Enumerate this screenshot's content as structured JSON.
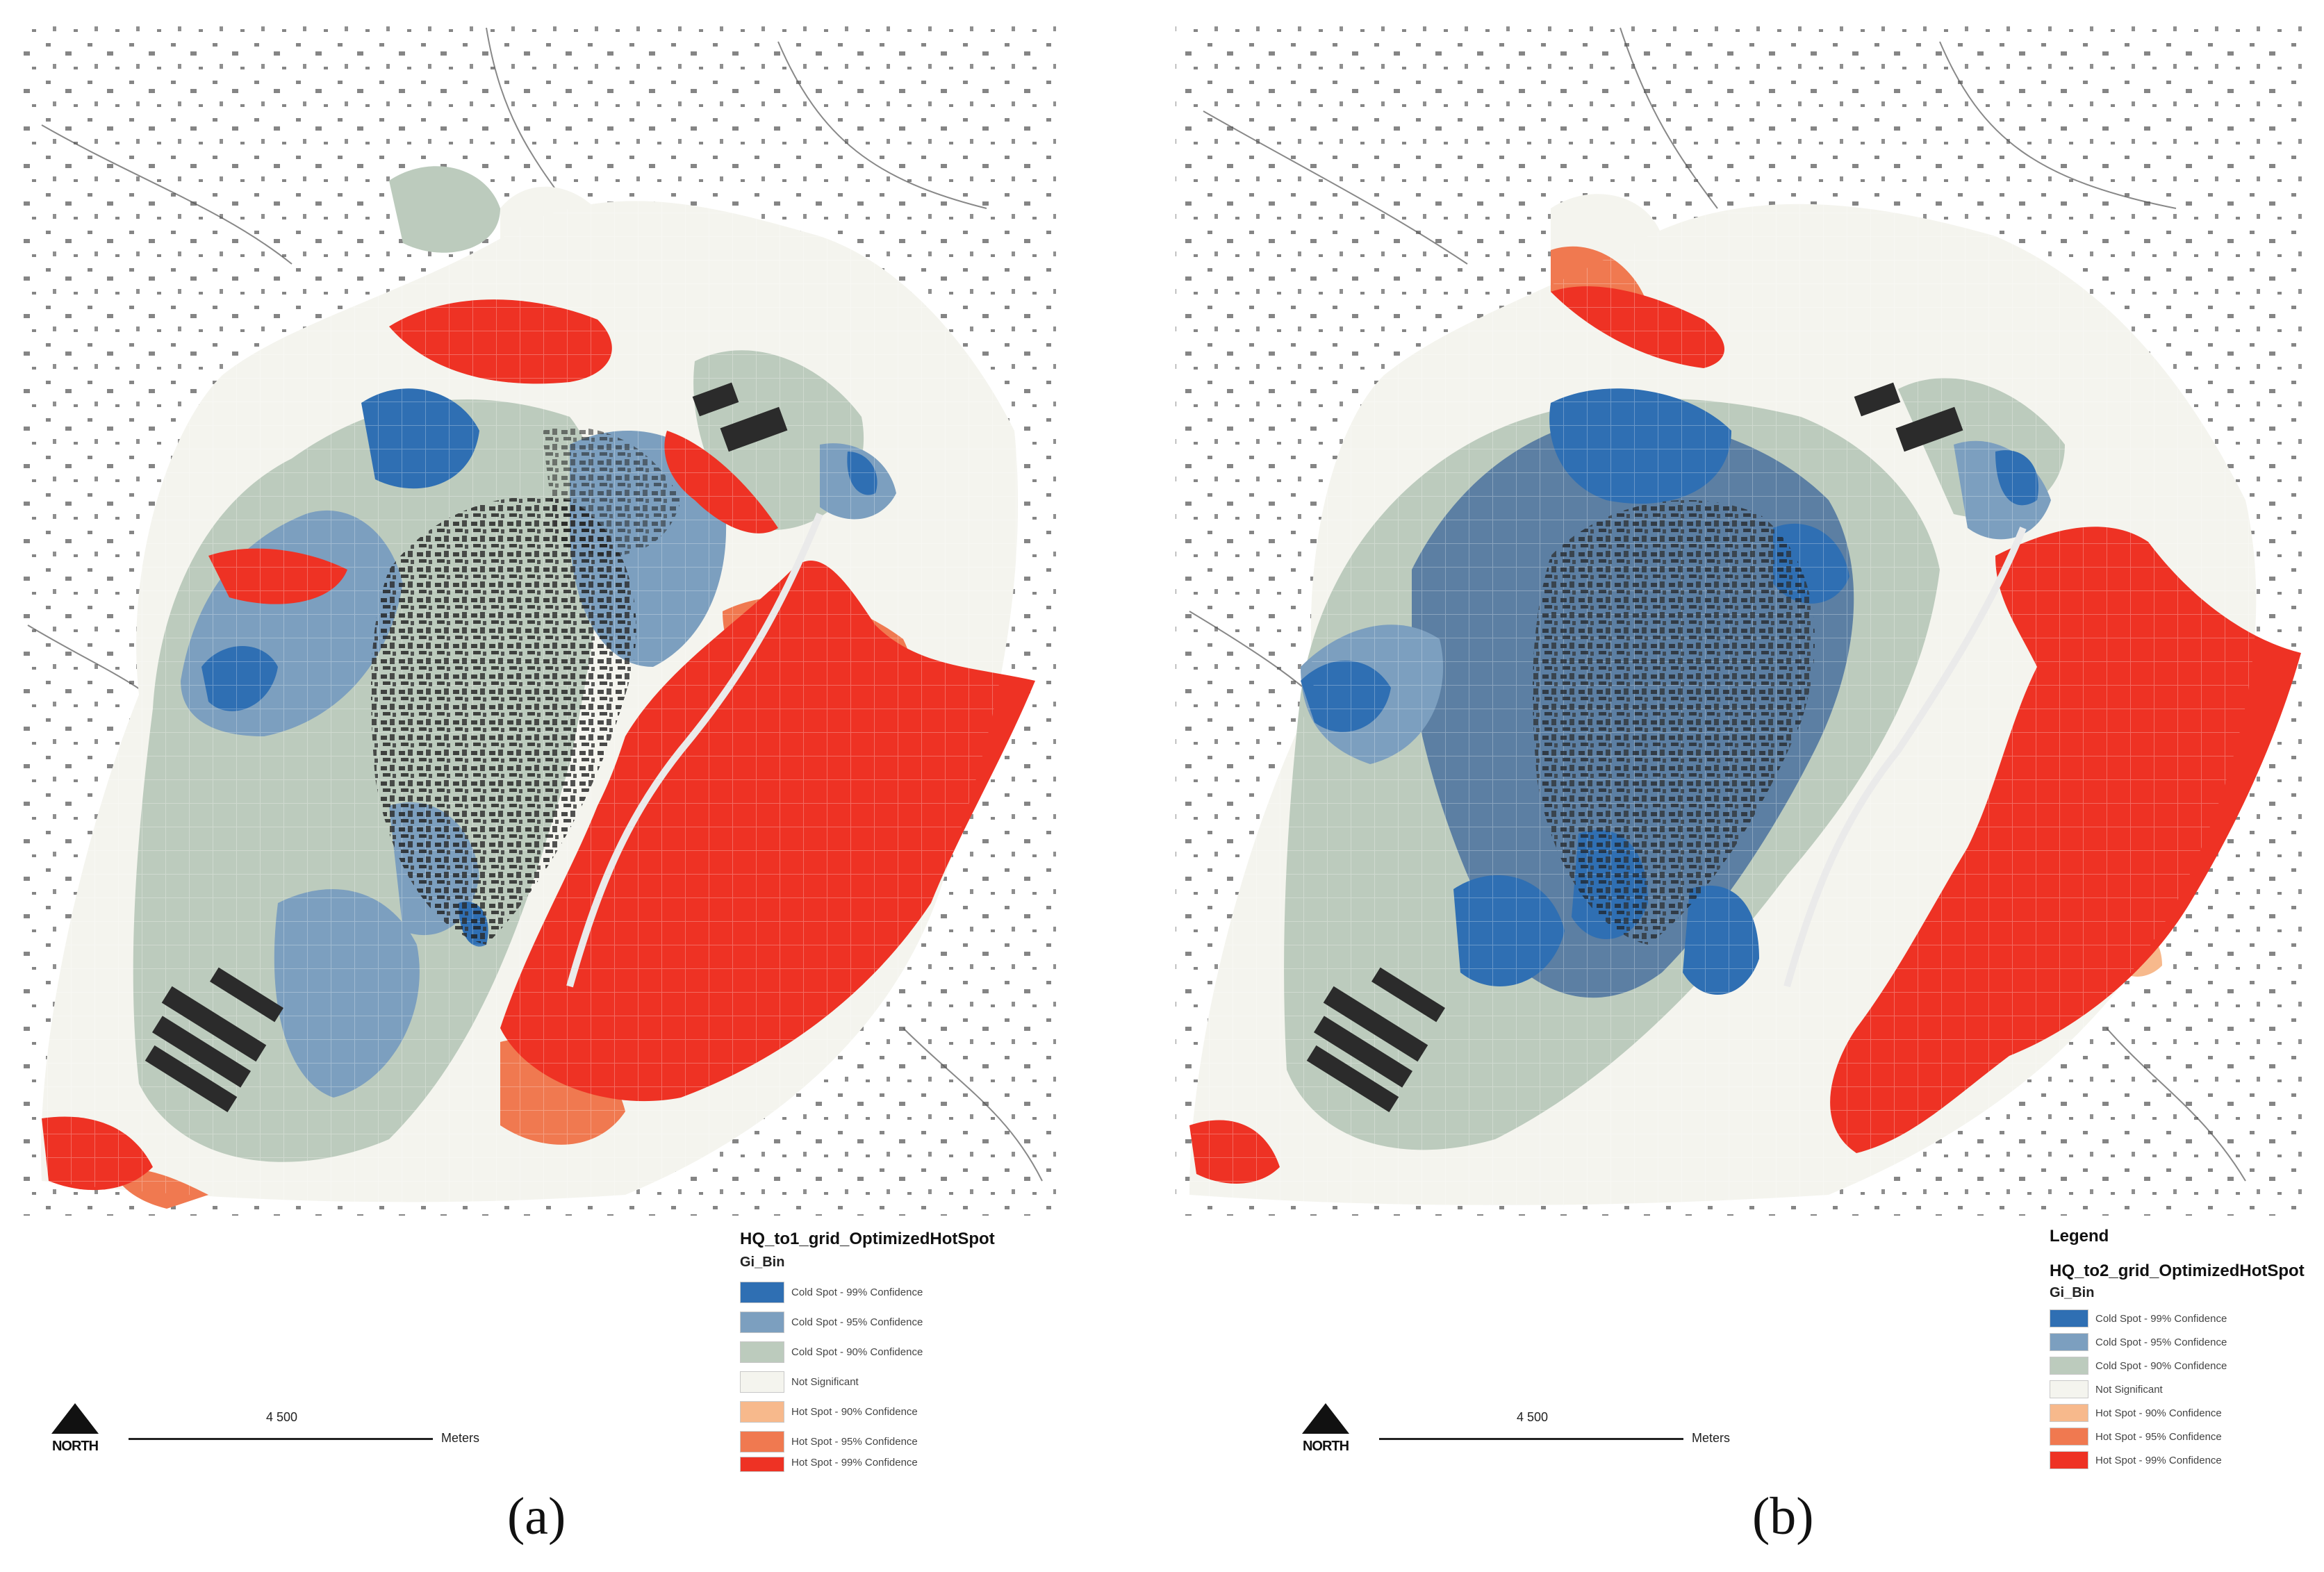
{
  "panels": [
    {
      "label": "(a)",
      "legend": {
        "caption": "",
        "title": "HQ_to1_grid_OptimizedHotSpot",
        "field": "Gi_Bin",
        "items": [
          {
            "label": "Cold Spot - 99% Confidence",
            "color": "#2f6fb3"
          },
          {
            "label": "Cold Spot - 95% Confidence",
            "color": "#7c9fbf"
          },
          {
            "label": "Cold Spot - 90% Confidence",
            "color": "#bccbbd"
          },
          {
            "label": "Not Significant",
            "color": "#f4f4ee"
          },
          {
            "label": "Hot Spot - 90% Confidence",
            "color": "#f7b98c"
          },
          {
            "label": "Hot Spot - 95% Confidence",
            "color": "#f07950"
          },
          {
            "label": "Hot Spot - 99% Confidence",
            "color": "#ee3224"
          }
        ]
      },
      "north_label": "NORTH",
      "scale_value": "4 500",
      "scale_unit": "Meters"
    },
    {
      "label": "(b)",
      "legend": {
        "caption": "Legend",
        "title": "HQ_to2_grid_OptimizedHotSpot",
        "field": "Gi_Bin",
        "items": [
          {
            "label": "Cold Spot - 99% Confidence",
            "color": "#2f6fb3"
          },
          {
            "label": "Cold Spot - 95% Confidence",
            "color": "#7c9fbf"
          },
          {
            "label": "Cold Spot - 90% Confidence",
            "color": "#bccbbd"
          },
          {
            "label": "Not Significant",
            "color": "#f4f4ee"
          },
          {
            "label": "Hot Spot - 90% Confidence",
            "color": "#f7b98c"
          },
          {
            "label": "Hot Spot - 95% Confidence",
            "color": "#f07950"
          },
          {
            "label": "Hot Spot - 99% Confidence",
            "color": "#ee3224"
          }
        ]
      },
      "north_label": "NORTH",
      "scale_value": "4 500",
      "scale_unit": "Meters"
    }
  ]
}
